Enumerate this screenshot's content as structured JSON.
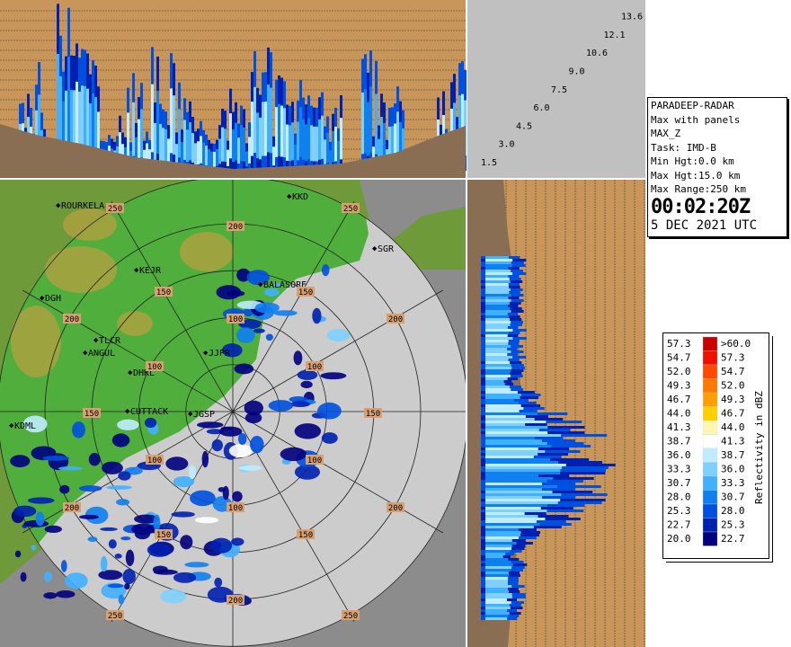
{
  "elevation_angles": [
    "1.5",
    "3.0",
    "4.5",
    "6.0",
    "7.5",
    "9.0",
    "10.6",
    "12.1",
    "13.6"
  ],
  "info": {
    "station": "PARADEEP-RADAR",
    "product": "Max with panels",
    "field": "MAX_Z",
    "task": "Task: IMD-B",
    "min_height": "Min Hgt:0.0 km",
    "max_height": "Max Hgt:15.0 km",
    "max_range": "Max Range:250 km",
    "time": "00:02:20Z",
    "date": "5 DEC 2021 UTC"
  },
  "legend": {
    "title": "Reflectivity in dBZ",
    "rows": [
      {
        "low": "57.3",
        "high": ">60.0",
        "color": "#c80000"
      },
      {
        "low": "54.7",
        "high": "57.3",
        "color": "#f01000"
      },
      {
        "low": "52.0",
        "high": "54.7",
        "color": "#ff4a00"
      },
      {
        "low": "49.3",
        "high": "52.0",
        "color": "#ff7800"
      },
      {
        "low": "46.7",
        "high": "49.3",
        "color": "#ffa000"
      },
      {
        "low": "44.0",
        "high": "46.7",
        "color": "#ffd000"
      },
      {
        "low": "41.3",
        "high": "44.0",
        "color": "#fff6b0"
      },
      {
        "low": "38.7",
        "high": "41.3",
        "color": "#ffffff"
      },
      {
        "low": "36.0",
        "high": "38.7",
        "color": "#c0ecff"
      },
      {
        "low": "33.3",
        "high": "36.0",
        "color": "#80d0ff"
      },
      {
        "low": "30.7",
        "high": "33.3",
        "color": "#40b0ff"
      },
      {
        "low": "28.0",
        "high": "30.7",
        "color": "#1080f0"
      },
      {
        "low": "25.3",
        "high": "28.0",
        "color": "#0050e0"
      },
      {
        "low": "22.7",
        "high": "25.3",
        "color": "#0020b0"
      },
      {
        "low": "20.0",
        "high": "22.7",
        "color": "#000080"
      }
    ]
  },
  "map": {
    "stations": [
      "ROURKELA",
      "KKD",
      "SGR",
      "KEJR",
      "DGH",
      "BALASORE",
      "TLCR",
      "ANGUL",
      "JJPR",
      "DHKL",
      "KDML",
      "CUTTACK",
      "JGSP"
    ],
    "range_labels": [
      "250",
      "250",
      "250",
      "250",
      "200",
      "200",
      "200",
      "200",
      "200",
      "200",
      "150",
      "150",
      "150",
      "150",
      "150",
      "150",
      "100",
      "100",
      "100",
      "100",
      "100",
      "100"
    ]
  }
}
